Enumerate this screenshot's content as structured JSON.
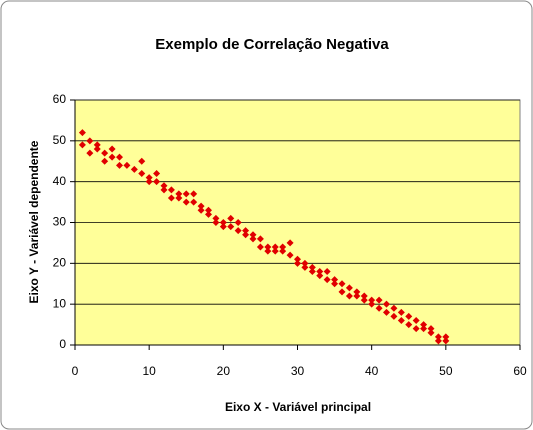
{
  "chart_data": {
    "type": "scatter",
    "title": "Exemplo de Correlação Negativa",
    "xlabel": "Eixo X - Variável principal",
    "ylabel": "Eixo Y - Variável dependente",
    "x": [
      1,
      1,
      2,
      2,
      3,
      3,
      4,
      4,
      5,
      5,
      6,
      6,
      7,
      8,
      9,
      9,
      10,
      10,
      11,
      11,
      12,
      12,
      13,
      13,
      14,
      14,
      15,
      15,
      16,
      16,
      17,
      17,
      18,
      18,
      19,
      19,
      20,
      20,
      21,
      21,
      22,
      22,
      23,
      23,
      24,
      24,
      25,
      25,
      26,
      26,
      27,
      27,
      28,
      28,
      29,
      29,
      30,
      30,
      31,
      31,
      32,
      32,
      33,
      33,
      34,
      34,
      35,
      35,
      36,
      36,
      37,
      37,
      38,
      38,
      39,
      39,
      40,
      40,
      41,
      41,
      42,
      42,
      43,
      43,
      44,
      44,
      45,
      45,
      46,
      46,
      47,
      47,
      48,
      48,
      49,
      49,
      50,
      50
    ],
    "values": [
      52,
      49,
      50,
      47,
      48,
      49,
      45,
      47,
      48,
      46,
      44,
      46,
      44,
      43,
      45,
      42,
      41,
      40,
      42,
      40,
      39,
      38,
      38,
      36,
      37,
      36,
      37,
      35,
      37,
      35,
      34,
      33,
      33,
      32,
      31,
      30,
      30,
      29,
      31,
      29,
      30,
      28,
      28,
      27,
      27,
      26,
      26,
      24,
      24,
      23,
      24,
      23,
      23,
      24,
      25,
      22,
      21,
      20,
      20,
      19,
      19,
      18,
      18,
      17,
      18,
      16,
      16,
      15,
      15,
      13,
      14,
      12,
      13,
      12,
      12,
      11,
      11,
      10,
      11,
      9,
      10,
      8,
      9,
      7,
      8,
      6,
      7,
      5,
      6,
      4,
      5,
      4,
      4,
      3,
      2,
      1,
      2,
      1
    ],
    "color": "#e00000",
    "plot_background": "#ffff99",
    "xlim": [
      0,
      60
    ],
    "ylim": [
      0,
      60
    ],
    "xticks": [
      0,
      10,
      20,
      30,
      40,
      50,
      60
    ],
    "yticks": [
      0,
      10,
      20,
      30,
      40,
      50,
      60
    ],
    "grid": true
  }
}
